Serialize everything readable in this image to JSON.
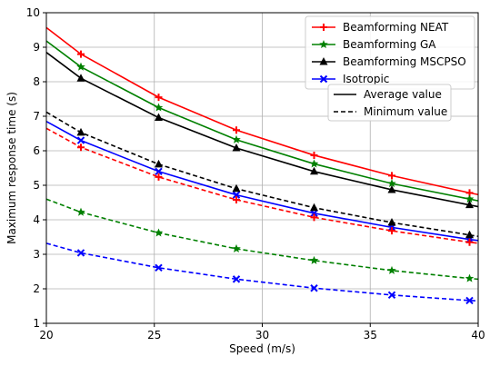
{
  "chart_data": {
    "type": "line",
    "xlabel": "Speed (m/s)",
    "ylabel": "Maximum response time (s)",
    "xlim": [
      20,
      40
    ],
    "ylim": [
      1,
      10
    ],
    "xticks": [
      20,
      25,
      30,
      35,
      40
    ],
    "yticks": [
      1,
      2,
      3,
      4,
      5,
      6,
      7,
      8,
      9,
      10
    ],
    "grid": true,
    "x": [
      20,
      21.6,
      25.2,
      28.8,
      32.4,
      36,
      39.6,
      40
    ],
    "marker_x": [
      21.6,
      25.2,
      28.8,
      32.4,
      36,
      39.6
    ],
    "series": [
      {
        "name": "Beamforming NEAT",
        "color": "#ff0000",
        "marker": "plus",
        "style": "solid",
        "values": [
          9.57,
          8.8,
          7.55,
          6.6,
          5.87,
          5.28,
          4.78,
          4.73
        ]
      },
      {
        "name": "Beamforming GA",
        "color": "#008000",
        "marker": "star",
        "style": "solid",
        "values": [
          9.18,
          8.43,
          7.25,
          6.32,
          5.62,
          5.05,
          4.6,
          4.55
        ]
      },
      {
        "name": "Beamforming MSCPSO",
        "color": "#000000",
        "marker": "triangle",
        "style": "solid",
        "values": [
          8.85,
          8.1,
          6.96,
          6.08,
          5.4,
          4.87,
          4.43,
          4.38
        ]
      },
      {
        "name": "Isotropic",
        "color": "#0000ff",
        "marker": "x",
        "style": "solid",
        "values": [
          6.85,
          6.3,
          5.4,
          4.72,
          4.19,
          3.78,
          3.43,
          3.4
        ]
      },
      {
        "name": "",
        "color": "#ff0000",
        "marker": "plus",
        "style": "dashed",
        "values": [
          6.65,
          6.1,
          5.24,
          4.58,
          4.07,
          3.68,
          3.35,
          3.32
        ]
      },
      {
        "name": "",
        "color": "#008000",
        "marker": "star",
        "style": "dashed",
        "values": [
          4.6,
          4.22,
          3.62,
          3.16,
          2.82,
          2.53,
          2.3,
          2.28
        ]
      },
      {
        "name": "",
        "color": "#000000",
        "marker": "triangle",
        "style": "dashed",
        "values": [
          7.12,
          6.53,
          5.61,
          4.9,
          4.35,
          3.92,
          3.56,
          3.52
        ]
      },
      {
        "name": "",
        "color": "#0000ff",
        "marker": "x",
        "style": "dashed",
        "values": [
          3.32,
          3.04,
          2.61,
          2.28,
          2.02,
          1.82,
          1.66,
          1.65
        ]
      }
    ],
    "legend": {
      "placement": "top-right",
      "series_entries": [
        {
          "label": "Beamforming NEAT",
          "color": "#ff0000",
          "marker": "plus"
        },
        {
          "label": "Beamforming GA",
          "color": "#008000",
          "marker": "star"
        },
        {
          "label": "Beamforming MSCPSO",
          "color": "#000000",
          "marker": "triangle"
        },
        {
          "label": "Isotropic",
          "color": "#0000ff",
          "marker": "x"
        }
      ],
      "style_entries": [
        {
          "label": "Average value",
          "style": "solid"
        },
        {
          "label": "Minimum value",
          "style": "dashed"
        }
      ]
    }
  }
}
